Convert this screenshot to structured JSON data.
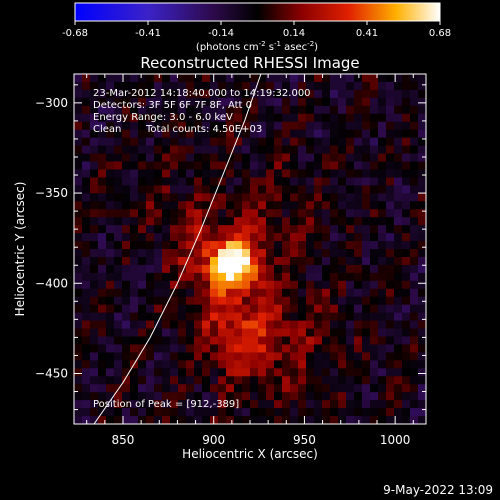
{
  "chart_data": {
    "type": "heatmap",
    "title": "Reconstructed RHESSI Image",
    "xlabel": "Heliocentric X (arcsec)",
    "ylabel": "Heliocentric Y (arcsec)",
    "xlim": [
      823,
      1017
    ],
    "ylim": [
      -478,
      -284
    ],
    "x_ticks": [
      850,
      900,
      950,
      1000
    ],
    "y_ticks": [
      -300,
      -350,
      -400,
      -450
    ],
    "grid": false,
    "colorbar": {
      "min": -0.68,
      "max": 0.68,
      "ticks": [
        "-0.68",
        "-0.41",
        "-0.14",
        "0.14",
        "0.41",
        "0.68"
      ],
      "units_parts": [
        "(photons cm",
        "-2",
        " s",
        "-1",
        " asec",
        "-2",
        ")"
      ],
      "colormap": "blue-purple-black-red-yellow-white"
    },
    "annotations": {
      "time_range": "23-Mar-2012 14:18:40.000 to 14:19:32.000",
      "detectors": "Detectors: 3F 5F 6F 7F 8F, Att 0",
      "energy": "Energy Range: 3.0 - 6.0 keV",
      "method": "Clean",
      "counts": "Total counts: 4.50E+03",
      "peak": "Position of Peak = [912,-389]"
    },
    "peak": {
      "x": 912,
      "y": -389
    },
    "limb_curve": [
      [
        834,
        -478
      ],
      [
        850,
        -455
      ],
      [
        865,
        -430
      ],
      [
        880,
        -400
      ],
      [
        893,
        -370
      ],
      [
        905,
        -340
      ],
      [
        917,
        -310
      ],
      [
        926,
        -284
      ]
    ],
    "sources": [
      {
        "x": 912,
        "y": -389,
        "sigma": 9,
        "amp": 0.68
      },
      {
        "x": 895,
        "y": -383,
        "sigma": 14,
        "amp": 0.22
      },
      {
        "x": 910,
        "y": -418,
        "sigma": 16,
        "amp": 0.2
      },
      {
        "x": 920,
        "y": -437,
        "sigma": 18,
        "amp": 0.14
      },
      {
        "x": 945,
        "y": -430,
        "sigma": 25,
        "amp": 0.1
      },
      {
        "x": 930,
        "y": -360,
        "sigma": 20,
        "amp": 0.12
      },
      {
        "x": 870,
        "y": -350,
        "sigma": 18,
        "amp": 0.08
      }
    ]
  },
  "footer": {
    "date": "9-May-2022 13:09"
  }
}
